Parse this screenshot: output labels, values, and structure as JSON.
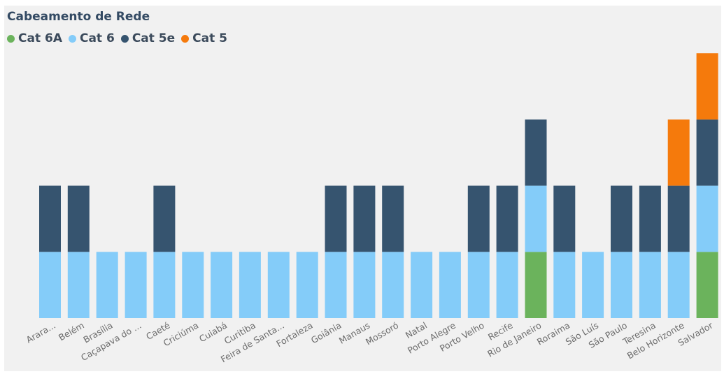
{
  "colors": {
    "Cat 6A": "#6bb35c",
    "Cat 6": "#84ccf9",
    "Cat 5e": "#36546f",
    "Cat 5": "#f57a0c"
  },
  "chart_data": {
    "type": "bar",
    "stacked": true,
    "title": "Cabeamento de Rede",
    "legend_position": "top-left",
    "grid": false,
    "ylim": [
      0,
      4
    ],
    "categories": [
      "Arara...",
      "Belém",
      "Brasília",
      "Caçapava do ...",
      "Caeté",
      "Criciúma",
      "Cuiabá",
      "Curitiba",
      "Feira de Santa...",
      "Fortaleza",
      "Goiânia",
      "Manaus",
      "Mossoró",
      "Natal",
      "Porto Alegre",
      "Porto Velho",
      "Recife",
      "Rio de Janeiro",
      "Roraima",
      "São Luís",
      "São Paulo",
      "Teresina",
      "Belo Horizonte",
      "Salvador"
    ],
    "series": [
      {
        "name": "Cat 6A",
        "values": [
          0,
          0,
          0,
          0,
          0,
          0,
          0,
          0,
          0,
          0,
          0,
          0,
          0,
          0,
          0,
          0,
          0,
          1,
          0,
          0,
          0,
          0,
          0,
          1
        ]
      },
      {
        "name": "Cat 6",
        "values": [
          1,
          1,
          1,
          1,
          1,
          1,
          1,
          1,
          1,
          1,
          1,
          1,
          1,
          1,
          1,
          1,
          1,
          1,
          1,
          1,
          1,
          1,
          1,
          1
        ]
      },
      {
        "name": "Cat 5e",
        "values": [
          1,
          1,
          0,
          0,
          1,
          0,
          0,
          0,
          0,
          0,
          1,
          1,
          1,
          0,
          0,
          1,
          1,
          1,
          1,
          0,
          1,
          1,
          1,
          1
        ]
      },
      {
        "name": "Cat 5",
        "values": [
          0,
          0,
          0,
          0,
          0,
          0,
          0,
          0,
          0,
          0,
          0,
          0,
          0,
          0,
          0,
          0,
          0,
          0,
          0,
          0,
          0,
          0,
          1,
          1
        ]
      }
    ]
  }
}
